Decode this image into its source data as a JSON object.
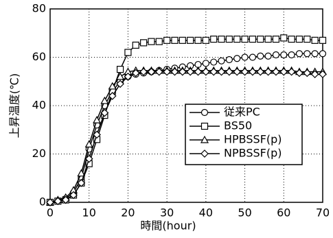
{
  "chart_data": {
    "type": "line",
    "xlabel": "時間(hour)",
    "ylabel": "上昇温度(℃)",
    "x": [
      0,
      2,
      4,
      6,
      8,
      10,
      12,
      14,
      16,
      18,
      20,
      22,
      24,
      26,
      28,
      30,
      32,
      34,
      36,
      38,
      40,
      42,
      44,
      46,
      48,
      50,
      52,
      54,
      56,
      58,
      60,
      62,
      64,
      66,
      68,
      70
    ],
    "xlim": [
      0,
      70
    ],
    "xticks": [
      0,
      10,
      20,
      30,
      40,
      50,
      60,
      70
    ],
    "ylim": [
      0,
      80
    ],
    "yticks": [
      0,
      20,
      40,
      60,
      80
    ],
    "grid": true,
    "legend": "right",
    "series": [
      {
        "name": "従来PC",
        "color": "#000000",
        "marker": "circle",
        "values": [
          0,
          0.5,
          1.5,
          4,
          10,
          22,
          32,
          40,
          46,
          50,
          52,
          53,
          53.5,
          54,
          54.5,
          55,
          55.5,
          56,
          56.5,
          57,
          57.5,
          58,
          58.5,
          59,
          59.5,
          60,
          60,
          60.5,
          60.5,
          61,
          61,
          61,
          61.5,
          61.5,
          61.5,
          61.5
        ]
      },
      {
        "name": "BS50",
        "color": "#000000",
        "marker": "square",
        "values": [
          0,
          0.5,
          1,
          3,
          8,
          16,
          26,
          36,
          46,
          55,
          62,
          65,
          66,
          66.5,
          66.5,
          67,
          67,
          67,
          67,
          67,
          67,
          67.5,
          67.5,
          67.5,
          67.5,
          67.5,
          67.5,
          67.5,
          67.5,
          67.5,
          68,
          67.5,
          67.5,
          67.5,
          67,
          67
        ]
      },
      {
        "name": "HPBSSF(p)",
        "color": "#000000",
        "marker": "triangle",
        "values": [
          0,
          1,
          2,
          5,
          12,
          24,
          34,
          42,
          48,
          52,
          54,
          54.5,
          54.5,
          54.5,
          54.5,
          54.5,
          54.5,
          54.5,
          54.5,
          54.5,
          54.5,
          54.5,
          54.5,
          54.5,
          54.5,
          54.5,
          54.5,
          54.5,
          54.5,
          54.5,
          54.5,
          54.5,
          54,
          54,
          54,
          54
        ]
      },
      {
        "name": "NPBSSF(p)",
        "color": "#000000",
        "marker": "diamond",
        "values": [
          0,
          0.5,
          1,
          3,
          8,
          18,
          28,
          37,
          44,
          49,
          52,
          53.5,
          54,
          54,
          54,
          54,
          54,
          54,
          54,
          54,
          54,
          54,
          54,
          54,
          54,
          54,
          54,
          54,
          54,
          54,
          54,
          54,
          53.5,
          53.5,
          53,
          53
        ]
      }
    ]
  }
}
